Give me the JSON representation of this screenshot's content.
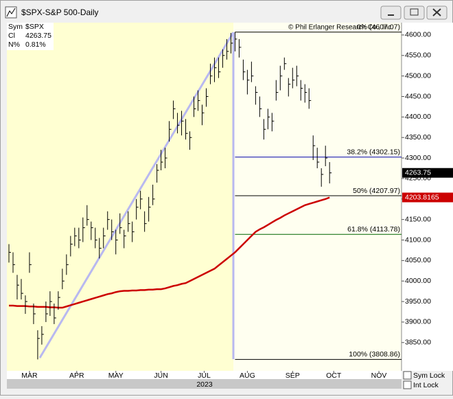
{
  "window_title": "$SPX-S&P 500-Daily",
  "info": {
    "rows": [
      [
        "Sym",
        "$SPX"
      ],
      [
        "Cl",
        "4263.75"
      ],
      [
        "N%",
        "0.81%"
      ]
    ]
  },
  "copyright": "© Phil Erlanger Research Co., Inc.",
  "controls": [
    "Sym Lock",
    "Int Lock"
  ],
  "chart_data": {
    "type": "ohlc",
    "x_sublabel": "2023",
    "xlim": [
      -0.5,
      95.5
    ],
    "xticks": [
      {
        "value": 5,
        "label": "MAR"
      },
      {
        "value": 16.5,
        "label": "APR"
      },
      {
        "value": 26,
        "label": "MAY"
      },
      {
        "value": 37,
        "label": "JUN"
      },
      {
        "value": 47.5,
        "label": "JUL"
      },
      {
        "value": 58,
        "label": "AUG"
      },
      {
        "value": 69,
        "label": "SEP"
      },
      {
        "value": 79,
        "label": "OCT"
      },
      {
        "value": 90,
        "label": "NOV"
      }
    ],
    "ylim": [
      3781,
      4630
    ],
    "yticks": [
      {
        "value": 3850,
        "label": "3850.00"
      },
      {
        "value": 3900,
        "label": "3900.00"
      },
      {
        "value": 3950,
        "label": "3950.00"
      },
      {
        "value": 4000,
        "label": "4000.00"
      },
      {
        "value": 4050,
        "label": "4050.00"
      },
      {
        "value": 4100,
        "label": "4100.00"
      },
      {
        "value": 4150,
        "label": "4150.00"
      },
      {
        "value": 4200,
        "label": "4200.00"
      },
      {
        "value": 4250,
        "label": "4250.00"
      },
      {
        "value": 4300,
        "label": "4300.00"
      },
      {
        "value": 4350,
        "label": "4350.00"
      },
      {
        "value": 4400,
        "label": "4400.00"
      },
      {
        "value": 4450,
        "label": "4450.00"
      },
      {
        "value": 4500,
        "label": "4500.00"
      },
      {
        "value": 4550,
        "label": "4550.00"
      },
      {
        "value": 4600,
        "label": "4600.00"
      }
    ],
    "bar_color": "#000000",
    "high": [
      4090,
      4070,
      4015,
      4005,
      3965,
      4070,
      3945,
      3880,
      3890,
      3950,
      3975,
      3945,
      3975,
      4030,
      4065,
      4110,
      4130,
      4130,
      4155,
      4185,
      4145,
      4130,
      4105,
      4130,
      4170,
      4150,
      4125,
      4165,
      4125,
      4170,
      4145,
      4200,
      4220,
      4170,
      4205,
      4235,
      4285,
      4320,
      4325,
      4390,
      4440,
      4410,
      4415,
      4395,
      4365,
      4450,
      4465,
      4430,
      4470,
      4530,
      4545,
      4545,
      4565,
      4590,
      4605,
      4607.07,
      4590,
      4540,
      4515,
      4535,
      4475,
      4450,
      4395,
      4420,
      4410,
      4490,
      4525,
      4545,
      4495,
      4520,
      4525,
      4490,
      4480,
      4470,
      4355,
      4325,
      4275,
      4330,
      4290
    ],
    "low": [
      4045,
      4020,
      3955,
      3955,
      3920,
      4020,
      3895,
      3808.86,
      3845,
      3900,
      3915,
      3895,
      3930,
      3980,
      4015,
      4060,
      4085,
      4080,
      4095,
      4135,
      4100,
      4080,
      4055,
      4080,
      4125,
      4100,
      4065,
      4115,
      4080,
      4120,
      4095,
      4150,
      4175,
      4120,
      4145,
      4185,
      4240,
      4270,
      4275,
      4340,
      4395,
      4360,
      4355,
      4345,
      4320,
      4400,
      4415,
      4380,
      4425,
      4480,
      4485,
      4495,
      4520,
      4540,
      4555,
      4560,
      4545,
      4490,
      4455,
      4485,
      4430,
      4400,
      4345,
      4370,
      4365,
      4440,
      4465,
      4515,
      4450,
      4470,
      4475,
      4440,
      4435,
      4420,
      4295,
      4275,
      4230,
      4280,
      4238
    ],
    "close": [
      4070,
      4040,
      3990,
      3970,
      3950,
      4040,
      3920,
      3860,
      3870,
      3920,
      3950,
      3910,
      3960,
      4000,
      4040,
      4090,
      4110,
      4100,
      4130,
      4150,
      4130,
      4100,
      4080,
      4110,
      4150,
      4120,
      4100,
      4130,
      4110,
      4140,
      4120,
      4180,
      4200,
      4140,
      4180,
      4200,
      4270,
      4290,
      4300,
      4370,
      4420,
      4380,
      4390,
      4360,
      4350,
      4420,
      4440,
      4410,
      4450,
      4500,
      4520,
      4510,
      4550,
      4560,
      4580,
      4590,
      4570,
      4510,
      4490,
      4500,
      4460,
      4420,
      4370,
      4400,
      4390,
      4460,
      4500,
      4530,
      4480,
      4490,
      4500,
      4470,
      4460,
      4440,
      4330,
      4290,
      4260,
      4300,
      4263.75
    ],
    "moving_average": {
      "color": "#cc0000",
      "values": [
        3940,
        3940,
        3939,
        3939,
        3939,
        3938,
        3938,
        3937,
        3937,
        3937,
        3936,
        3936,
        3935,
        3935,
        3938,
        3941,
        3944,
        3947,
        3950,
        3953,
        3956,
        3959,
        3962,
        3965,
        3968,
        3970,
        3973,
        3975,
        3976,
        3976,
        3977,
        3977,
        3978,
        3978,
        3979,
        3979,
        3980,
        3980,
        3982,
        3985,
        3988,
        3990,
        3993,
        3995,
        4000,
        4005,
        4010,
        4015,
        4020,
        4025,
        4030,
        4038,
        4046,
        4054,
        4062,
        4070,
        4080,
        4090,
        4100,
        4110,
        4120,
        4126,
        4131,
        4137,
        4143,
        4149,
        4154,
        4160,
        4165,
        4170,
        4175,
        4180,
        4185,
        4188,
        4191,
        4194,
        4197,
        4200,
        4203.8165
      ]
    },
    "fib_levels": [
      {
        "label": "0% (4607.07)",
        "value": 4607.07,
        "color": "#000000"
      },
      {
        "label": "38.2% (4302.15)",
        "value": 4302.15,
        "color": "#0000aa"
      },
      {
        "label": "50% (4207.97)",
        "value": 4207.97,
        "color": "#000000"
      },
      {
        "label": "61.8% (4113.78)",
        "value": 4113.78,
        "color": "#006600"
      },
      {
        "label": "100% (3808.86)",
        "value": 3808.86,
        "color": "#000000"
      }
    ]
  }
}
